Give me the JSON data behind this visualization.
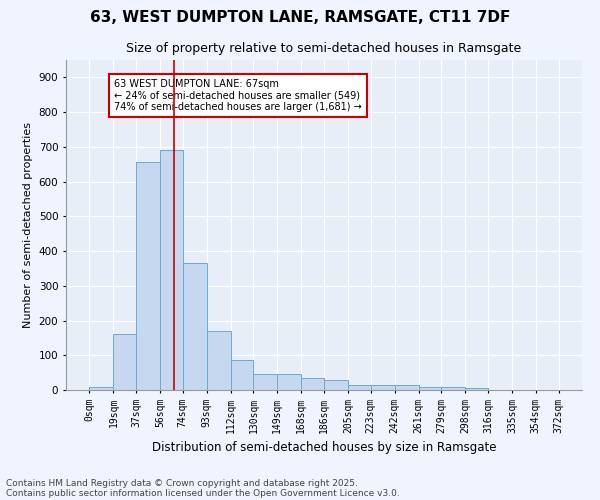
{
  "title1": "63, WEST DUMPTON LANE, RAMSGATE, CT11 7DF",
  "title2": "Size of property relative to semi-detached houses in Ramsgate",
  "xlabel": "Distribution of semi-detached houses by size in Ramsgate",
  "ylabel": "Number of semi-detached properties",
  "footnote1": "Contains HM Land Registry data © Crown copyright and database right 2025.",
  "footnote2": "Contains public sector information licensed under the Open Government Licence v3.0.",
  "bin_edges": [
    0,
    19,
    37,
    56,
    74,
    93,
    112,
    130,
    149,
    168,
    186,
    205,
    223,
    242,
    261,
    279,
    298,
    316,
    335,
    354,
    372
  ],
  "bar_heights": [
    10,
    160,
    655,
    690,
    365,
    170,
    85,
    47,
    47,
    35,
    30,
    15,
    13,
    13,
    10,
    10,
    5,
    0,
    0,
    0
  ],
  "bar_color": "#c5d8f0",
  "bar_edge_color": "#6aaad4",
  "property_size": 67,
  "annotation_text": "63 WEST DUMPTON LANE: 67sqm\n← 24% of semi-detached houses are smaller (549)\n74% of semi-detached houses are larger (1,681) →",
  "annotation_box_color": "#ffffff",
  "annotation_box_edge_color": "#cc0000",
  "vline_color": "#cc0000",
  "ylim": [
    0,
    950
  ],
  "yticks": [
    0,
    100,
    200,
    300,
    400,
    500,
    600,
    700,
    800,
    900
  ],
  "tick_labels": [
    "0sqm",
    "19sqm",
    "37sqm",
    "56sqm",
    "74sqm",
    "93sqm",
    "112sqm",
    "130sqm",
    "149sqm",
    "168sqm",
    "186sqm",
    "205sqm",
    "223sqm",
    "242sqm",
    "261sqm",
    "279sqm",
    "298sqm",
    "316sqm",
    "335sqm",
    "354sqm",
    "372sqm"
  ],
  "fig_background_color": "#f0f4ff",
  "plot_bg_color": "#e8eef8",
  "grid_color": "#ffffff",
  "title1_fontsize": 11,
  "title2_fontsize": 9,
  "axis_label_fontsize": 8,
  "tick_fontsize": 7,
  "footnote_fontsize": 6.5
}
